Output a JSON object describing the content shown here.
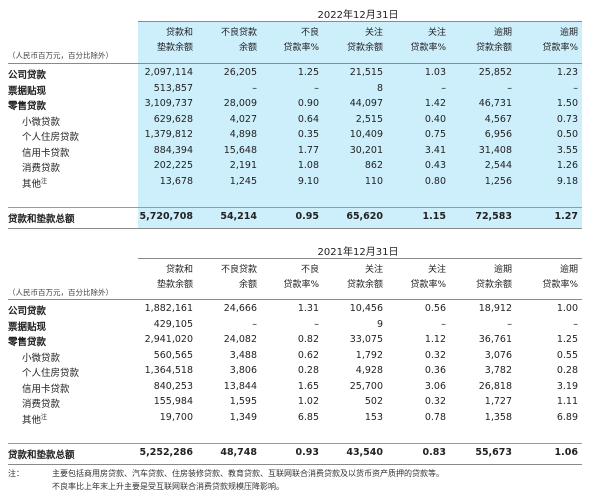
{
  "colors": {
    "highlight": "#cdeefb",
    "rule": "#8a8a8a"
  },
  "unit_note": "（人民币百万元，百分比除外）",
  "headers": [
    [
      "贷款和",
      "垫款余额"
    ],
    [
      "不良贷款",
      "余额"
    ],
    [
      "不良",
      "贷款率%"
    ],
    [
      "关注",
      "贷款余额"
    ],
    [
      "关注",
      "贷款率%"
    ],
    [
      "逾期",
      "贷款余额"
    ],
    [
      "逾期",
      "贷款率%"
    ]
  ],
  "table2022": {
    "year_label": "2022年12月31日",
    "rows": [
      {
        "label": "公司贷款",
        "values": [
          "2,097,114",
          "26,205",
          "1.25",
          "21,515",
          "1.03",
          "25,852",
          "1.23"
        ]
      },
      {
        "label": "票据贴现",
        "values": [
          "513,857",
          "–",
          "–",
          "8",
          "–",
          "–",
          "–"
        ]
      },
      {
        "label": "零售贷款",
        "values": [
          "3,109,737",
          "28,009",
          "0.90",
          "44,097",
          "1.42",
          "46,731",
          "1.50"
        ]
      },
      {
        "label": "小微贷款",
        "values": [
          "629,628",
          "4,027",
          "0.64",
          "2,515",
          "0.40",
          "4,567",
          "0.73"
        ]
      },
      {
        "label": "个人住房贷款",
        "values": [
          "1,379,812",
          "4,898",
          "0.35",
          "10,409",
          "0.75",
          "6,956",
          "0.50"
        ]
      },
      {
        "label": "信用卡贷款",
        "values": [
          "884,394",
          "15,648",
          "1.77",
          "30,201",
          "3.41",
          "31,408",
          "3.55"
        ]
      },
      {
        "label": "消费贷款",
        "values": [
          "202,225",
          "2,191",
          "1.08",
          "862",
          "0.43",
          "2,544",
          "1.26"
        ]
      },
      {
        "label": "其他",
        "values": [
          "13,678",
          "1,245",
          "9.10",
          "110",
          "0.80",
          "1,256",
          "9.18"
        ]
      },
      {
        "label": "贷款和垫款总额",
        "values": [
          "5,720,708",
          "54,214",
          "0.95",
          "65,620",
          "1.15",
          "72,583",
          "1.27"
        ]
      }
    ]
  },
  "table2021": {
    "year_label": "2021年12月31日",
    "rows": [
      {
        "label": "公司贷款",
        "values": [
          "1,882,161",
          "24,666",
          "1.31",
          "10,456",
          "0.56",
          "18,912",
          "1.00"
        ]
      },
      {
        "label": "票据贴现",
        "values": [
          "429,105",
          "–",
          "–",
          "9",
          "–",
          "–",
          "–"
        ]
      },
      {
        "label": "零售贷款",
        "values": [
          "2,941,020",
          "24,082",
          "0.82",
          "33,075",
          "1.12",
          "36,761",
          "1.25"
        ]
      },
      {
        "label": "小微贷款",
        "values": [
          "560,565",
          "3,488",
          "0.62",
          "1,792",
          "0.32",
          "3,076",
          "0.55"
        ]
      },
      {
        "label": "个人住房贷款",
        "values": [
          "1,364,518",
          "3,806",
          "0.28",
          "4,928",
          "0.36",
          "3,782",
          "0.28"
        ]
      },
      {
        "label": "信用卡贷款",
        "values": [
          "840,253",
          "13,844",
          "1.65",
          "25,700",
          "3.06",
          "26,818",
          "3.19"
        ]
      },
      {
        "label": "消费贷款",
        "values": [
          "155,984",
          "1,595",
          "1.02",
          "502",
          "0.32",
          "1,727",
          "1.11"
        ]
      },
      {
        "label": "其他",
        "values": [
          "19,700",
          "1,349",
          "6.85",
          "153",
          "0.78",
          "1,358",
          "6.89"
        ]
      },
      {
        "label": "贷款和垫款总额",
        "values": [
          "5,252,286",
          "48,748",
          "0.93",
          "43,540",
          "0.83",
          "55,673",
          "1.06"
        ]
      }
    ]
  },
  "footnote_marker": "注",
  "note_label": "注：",
  "note_lines": [
    "主要包括商用房贷款、汽车贷款、住房装修贷款、教育贷款、互联网联合消费贷款及以货币资产质押的贷款等。",
    "不良率比上年末上升主要是受互联网联合消费贷款规模压降影响。"
  ]
}
